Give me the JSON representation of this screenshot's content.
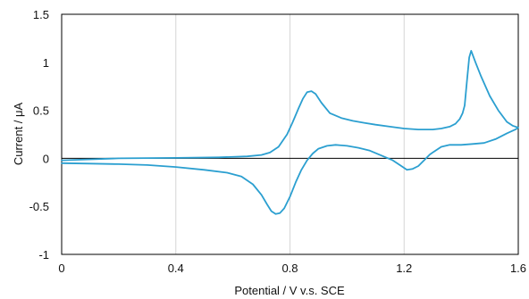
{
  "chart_data": {
    "type": "line",
    "title": "",
    "xlabel": "Potential / V v.s. SCE",
    "ylabel": "Current / μA",
    "xlim": [
      0,
      1.6
    ],
    "ylim": [
      -1,
      1.5
    ],
    "x_ticks": [
      0,
      0.4,
      0.8,
      1.2,
      1.6
    ],
    "x_tick_labels": [
      "0",
      "0.4",
      "0.8",
      "1.2",
      "1.6"
    ],
    "y_ticks": [
      -1,
      -0.5,
      0,
      0.5,
      1,
      1.5
    ],
    "y_tick_labels": [
      "-1",
      "-0.5",
      "0",
      "0.5",
      "1",
      "1.5"
    ],
    "grid": "vertical",
    "colors": {
      "series": "#2b9fd0",
      "grid": "#d6d6d6",
      "axis": "#000000"
    },
    "series": [
      {
        "name": "",
        "x": [
          0,
          0.2,
          0.4,
          0.55,
          0.65,
          0.7,
          0.73,
          0.76,
          0.79,
          0.81,
          0.83,
          0.845,
          0.86,
          0.875,
          0.89,
          0.91,
          0.94,
          0.98,
          1.02,
          1.06,
          1.1,
          1.15,
          1.2,
          1.25,
          1.3,
          1.33,
          1.36,
          1.38,
          1.395,
          1.405,
          1.412,
          1.42,
          1.428,
          1.435,
          1.45,
          1.47,
          1.5,
          1.53,
          1.56,
          1.58,
          1.6,
          1.59,
          1.56,
          1.52,
          1.48,
          1.44,
          1.4,
          1.36,
          1.33,
          1.31,
          1.3,
          1.29,
          1.27,
          1.25,
          1.23,
          1.21,
          1.19,
          1.16,
          1.12,
          1.08,
          1.04,
          1.0,
          0.96,
          0.93,
          0.9,
          0.88,
          0.86,
          0.84,
          0.82,
          0.8,
          0.78,
          0.765,
          0.75,
          0.735,
          0.72,
          0.7,
          0.67,
          0.63,
          0.58,
          0.5,
          0.4,
          0.3,
          0.2,
          0.1,
          0
        ],
        "y": [
          -0.02,
          0.0,
          0.005,
          0.01,
          0.02,
          0.035,
          0.06,
          0.12,
          0.25,
          0.38,
          0.52,
          0.62,
          0.69,
          0.7,
          0.67,
          0.58,
          0.47,
          0.42,
          0.39,
          0.37,
          0.35,
          0.33,
          0.31,
          0.3,
          0.3,
          0.31,
          0.33,
          0.36,
          0.41,
          0.47,
          0.55,
          0.8,
          1.05,
          1.12,
          1.0,
          0.85,
          0.65,
          0.5,
          0.38,
          0.34,
          0.32,
          0.3,
          0.26,
          0.2,
          0.16,
          0.15,
          0.14,
          0.14,
          0.12,
          0.08,
          0.06,
          0.04,
          -0.02,
          -0.08,
          -0.11,
          -0.12,
          -0.08,
          -0.02,
          0.03,
          0.08,
          0.11,
          0.13,
          0.14,
          0.13,
          0.1,
          0.05,
          -0.02,
          -0.12,
          -0.25,
          -0.4,
          -0.52,
          -0.57,
          -0.58,
          -0.55,
          -0.48,
          -0.38,
          -0.27,
          -0.19,
          -0.15,
          -0.12,
          -0.09,
          -0.07,
          -0.06,
          -0.055,
          -0.05
        ]
      }
    ]
  }
}
